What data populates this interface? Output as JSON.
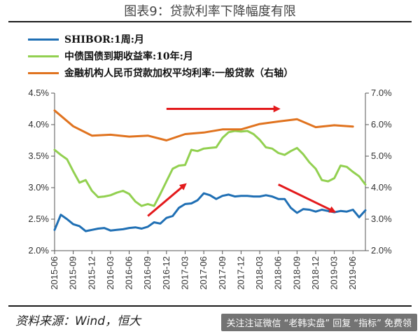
{
  "title": "图表9：贷款利率下降幅度有限",
  "source": "资料来源：Wind，恒大",
  "watermark": "关注注证微信 “老韩实盘” 回复 “指标” 免费领",
  "legend": [
    {
      "label": "SHIBOR:1周:月",
      "color": "#1f6fb4"
    },
    {
      "label": "中债国债到期收益率:10年:月",
      "color": "#92d050"
    },
    {
      "label": "金融机构人民币贷款加权平均利率:一般贷款（右轴）",
      "color": "#e0731f"
    }
  ],
  "chart_data": {
    "type": "line",
    "title": "图表9：贷款利率下降幅度有限",
    "x_tick_labels": [
      "2015-06",
      "2015-09",
      "2015-12",
      "2016-03",
      "2016-06",
      "2016-09",
      "2016-12",
      "2017-03",
      "2017-06",
      "2017-09",
      "2017-12",
      "2018-03",
      "2018-06",
      "2018-09",
      "2018-12",
      "2019-03",
      "2019-06"
    ],
    "left_axis": {
      "range": [
        2.0,
        4.5
      ],
      "ticks": [
        "2.0%",
        "2.5%",
        "3.0%",
        "3.5%",
        "4.0%",
        "4.5%"
      ]
    },
    "right_axis": {
      "range": [
        2.0,
        7.0
      ],
      "ticks": [
        "2.0%",
        "3.0%",
        "4.0%",
        "5.0%",
        "6.0%",
        "7.0%"
      ]
    },
    "series": [
      {
        "name": "SHIBOR:1周:月",
        "axis": "left",
        "color": "#1f6fb4",
        "x": [
          "2015-06",
          "2015-07",
          "2015-08",
          "2015-09",
          "2015-10",
          "2015-11",
          "2015-12",
          "2016-01",
          "2016-02",
          "2016-03",
          "2016-04",
          "2016-05",
          "2016-06",
          "2016-07",
          "2016-08",
          "2016-09",
          "2016-10",
          "2016-11",
          "2016-12",
          "2017-01",
          "2017-02",
          "2017-03",
          "2017-04",
          "2017-05",
          "2017-06",
          "2017-07",
          "2017-08",
          "2017-09",
          "2017-10",
          "2017-11",
          "2017-12",
          "2018-01",
          "2018-02",
          "2018-03",
          "2018-04",
          "2018-05",
          "2018-06",
          "2018-07",
          "2018-08",
          "2018-09",
          "2018-10",
          "2018-11",
          "2018-12",
          "2019-01",
          "2019-02",
          "2019-03",
          "2019-04",
          "2019-05",
          "2019-06",
          "2019-07",
          "2019-08"
        ],
        "values": [
          2.33,
          2.57,
          2.5,
          2.42,
          2.39,
          2.31,
          2.33,
          2.35,
          2.36,
          2.32,
          2.33,
          2.34,
          2.36,
          2.37,
          2.35,
          2.38,
          2.45,
          2.43,
          2.52,
          2.55,
          2.68,
          2.74,
          2.75,
          2.8,
          2.91,
          2.88,
          2.82,
          2.87,
          2.89,
          2.86,
          2.87,
          2.87,
          2.86,
          2.86,
          2.88,
          2.86,
          2.82,
          2.82,
          2.68,
          2.6,
          2.66,
          2.65,
          2.62,
          2.65,
          2.63,
          2.61,
          2.63,
          2.62,
          2.65,
          2.53,
          2.64
        ]
      },
      {
        "name": "中债国债到期收益率:10年:月",
        "axis": "left",
        "color": "#92d050",
        "x": [
          "2015-06",
          "2015-07",
          "2015-08",
          "2015-09",
          "2015-10",
          "2015-11",
          "2015-12",
          "2016-01",
          "2016-02",
          "2016-03",
          "2016-04",
          "2016-05",
          "2016-06",
          "2016-07",
          "2016-08",
          "2016-09",
          "2016-10",
          "2016-11",
          "2016-12",
          "2017-01",
          "2017-02",
          "2017-03",
          "2017-04",
          "2017-05",
          "2017-06",
          "2017-07",
          "2017-08",
          "2017-09",
          "2017-10",
          "2017-11",
          "2017-12",
          "2018-01",
          "2018-02",
          "2018-03",
          "2018-04",
          "2018-05",
          "2018-06",
          "2018-07",
          "2018-08",
          "2018-09",
          "2018-10",
          "2018-11",
          "2018-12",
          "2019-01",
          "2019-02",
          "2019-03",
          "2019-04",
          "2019-05",
          "2019-06",
          "2019-07",
          "2019-08"
        ],
        "values": [
          3.6,
          3.52,
          3.45,
          3.26,
          3.08,
          3.12,
          2.95,
          2.85,
          2.86,
          2.88,
          2.92,
          2.95,
          2.9,
          2.78,
          2.71,
          2.74,
          2.71,
          2.9,
          3.1,
          3.3,
          3.35,
          3.36,
          3.6,
          3.58,
          3.62,
          3.63,
          3.64,
          3.79,
          3.88,
          3.9,
          3.89,
          3.9,
          3.85,
          3.76,
          3.64,
          3.62,
          3.55,
          3.52,
          3.58,
          3.63,
          3.53,
          3.4,
          3.3,
          3.12,
          3.1,
          3.15,
          3.35,
          3.33,
          3.25,
          3.18,
          3.05
        ]
      },
      {
        "name": "金融机构人民币贷款加权平均利率:一般贷款（右轴）",
        "axis": "right",
        "color": "#e0731f",
        "x": [
          "2015-06",
          "2015-09",
          "2015-12",
          "2016-03",
          "2016-06",
          "2016-09",
          "2016-12",
          "2017-03",
          "2017-06",
          "2017-09",
          "2017-12",
          "2018-03",
          "2018-06",
          "2018-09",
          "2018-12",
          "2019-03",
          "2019-06"
        ],
        "values": [
          6.45,
          5.95,
          5.65,
          5.68,
          5.62,
          5.65,
          5.5,
          5.7,
          5.75,
          5.85,
          5.85,
          6.02,
          6.1,
          6.17,
          5.92,
          5.98,
          5.94
        ]
      }
    ],
    "annotations": [
      {
        "type": "arrow",
        "color": "#e31a1c",
        "from": {
          "x": "2016-12",
          "axis": "right",
          "y": 6.5
        },
        "to": {
          "x": "2018-06",
          "axis": "right",
          "y": 6.5
        }
      },
      {
        "type": "arrow",
        "color": "#e31a1c",
        "from": {
          "x": "2016-09",
          "axis": "left",
          "y": 2.55
        },
        "to": {
          "x": "2017-03",
          "axis": "left",
          "y": 3.05
        }
      },
      {
        "type": "arrow",
        "color": "#e31a1c",
        "from": {
          "x": "2018-06",
          "axis": "left",
          "y": 3.05
        },
        "to": {
          "x": "2019-03",
          "axis": "left",
          "y": 2.62
        }
      }
    ],
    "grid": false,
    "legend_position": "top-left"
  }
}
